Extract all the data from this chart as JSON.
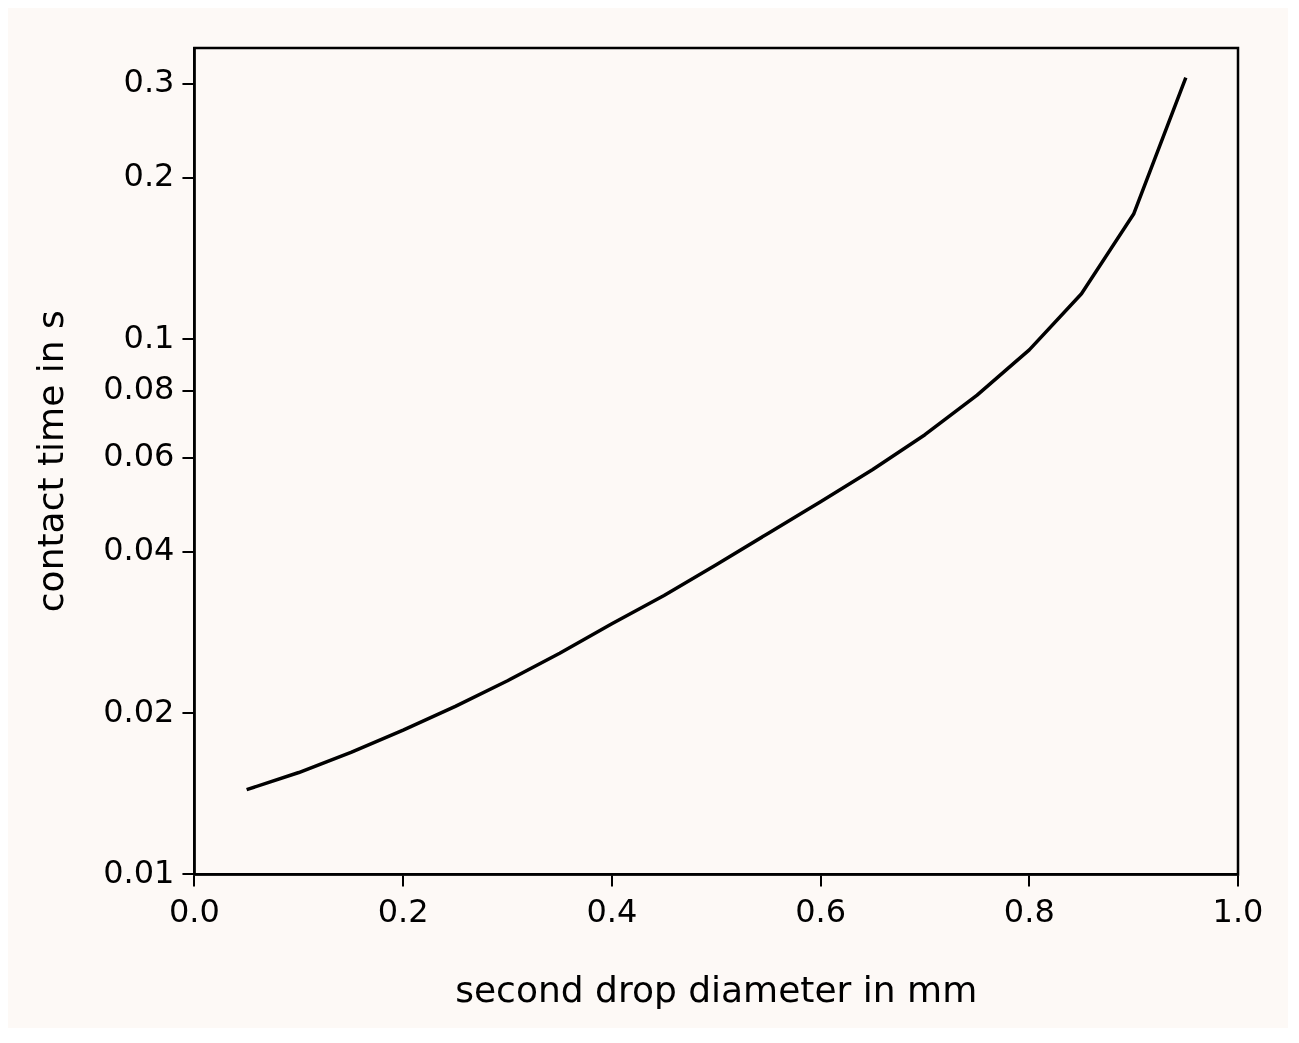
{
  "chart_data": {
    "type": "line",
    "xlabel": "second drop diameter in mm",
    "ylabel": "contact time in s",
    "x": [
      0.05,
      0.1,
      0.15,
      0.2,
      0.25,
      0.3,
      0.35,
      0.4,
      0.45,
      0.5,
      0.55,
      0.6,
      0.65,
      0.7,
      0.75,
      0.8,
      0.85,
      0.9,
      0.95
    ],
    "values": [
      0.0144,
      0.0155,
      0.0169,
      0.0186,
      0.0206,
      0.023,
      0.0259,
      0.0294,
      0.0332,
      0.0379,
      0.0434,
      0.0497,
      0.0571,
      0.0663,
      0.0786,
      0.0955,
      0.1216,
      0.1713,
      0.308
    ],
    "color": "#000000",
    "marker": "none",
    "line_style": "solid",
    "log": "y",
    "grid": false,
    "legend": false,
    "xlim": [
      0,
      1
    ],
    "xticks": [
      {
        "value": 0,
        "label": "0.0"
      },
      0.2,
      0.4,
      0.6,
      0.8,
      {
        "value": 1,
        "label": "1.0"
      }
    ],
    "ylim": [
      0.01,
      0.35
    ],
    "yticks": [
      0.01,
      0.02,
      0.04,
      0.06,
      0.08,
      0.1,
      0.2,
      0.3
    ]
  }
}
